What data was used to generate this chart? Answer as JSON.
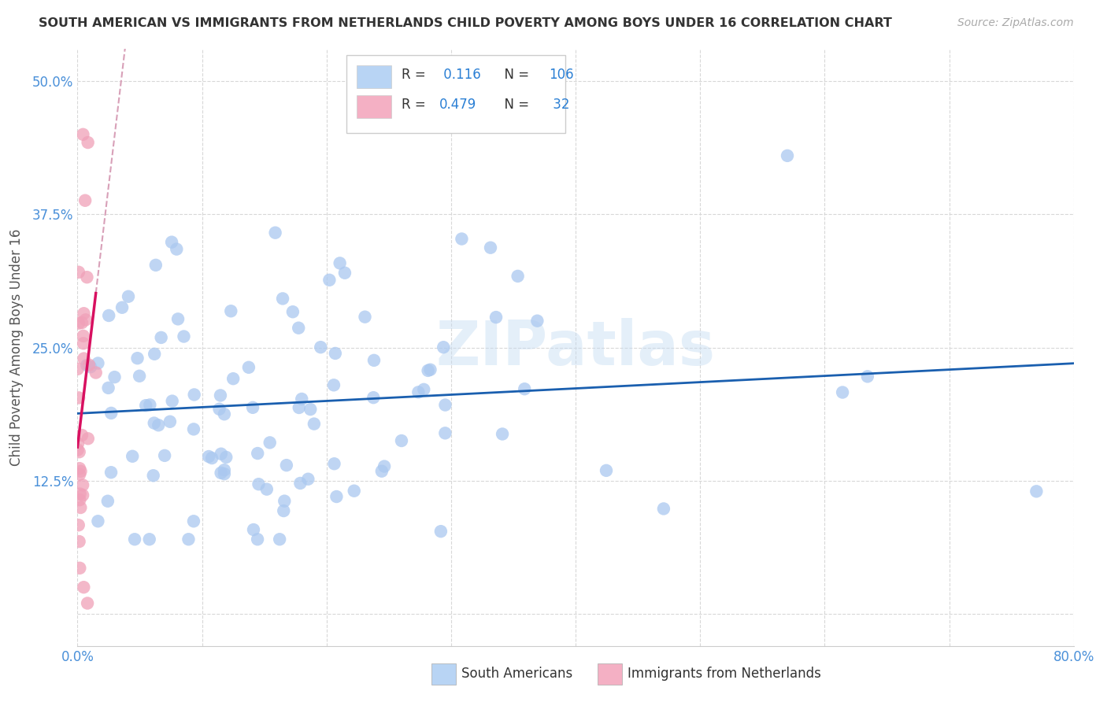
{
  "title": "SOUTH AMERICAN VS IMMIGRANTS FROM NETHERLANDS CHILD POVERTY AMONG BOYS UNDER 16 CORRELATION CHART",
  "source": "Source: ZipAtlas.com",
  "ylabel": "Child Poverty Among Boys Under 16",
  "xlim": [
    0.0,
    0.8
  ],
  "ylim": [
    -0.03,
    0.53
  ],
  "xticks": [
    0.0,
    0.1,
    0.2,
    0.3,
    0.4,
    0.5,
    0.6,
    0.7,
    0.8
  ],
  "xticklabels": [
    "0.0%",
    "",
    "",
    "",
    "",
    "",
    "",
    "",
    "80.0%"
  ],
  "yticks": [
    0.0,
    0.125,
    0.25,
    0.375,
    0.5
  ],
  "yticklabels": [
    "",
    "12.5%",
    "25.0%",
    "37.5%",
    "50.0%"
  ],
  "blue_scatter_color": "#aac8f0",
  "pink_scatter_color": "#f0a0b8",
  "blue_legend_color": "#b8d4f4",
  "pink_legend_color": "#f4b0c4",
  "trendline_blue": "#1a5faf",
  "trendline_pink": "#d81060",
  "trendline_dashed_color": "#d8a0b8",
  "R_blue": 0.116,
  "N_blue": 106,
  "R_pink": 0.479,
  "N_pink": 32,
  "watermark": "ZIPatlas",
  "legend_label_blue": "South Americans",
  "legend_label_pink": "Immigrants from Netherlands",
  "grid_color": "#d8d8d8",
  "tick_color": "#4a90d9",
  "axis_color": "#cccccc"
}
